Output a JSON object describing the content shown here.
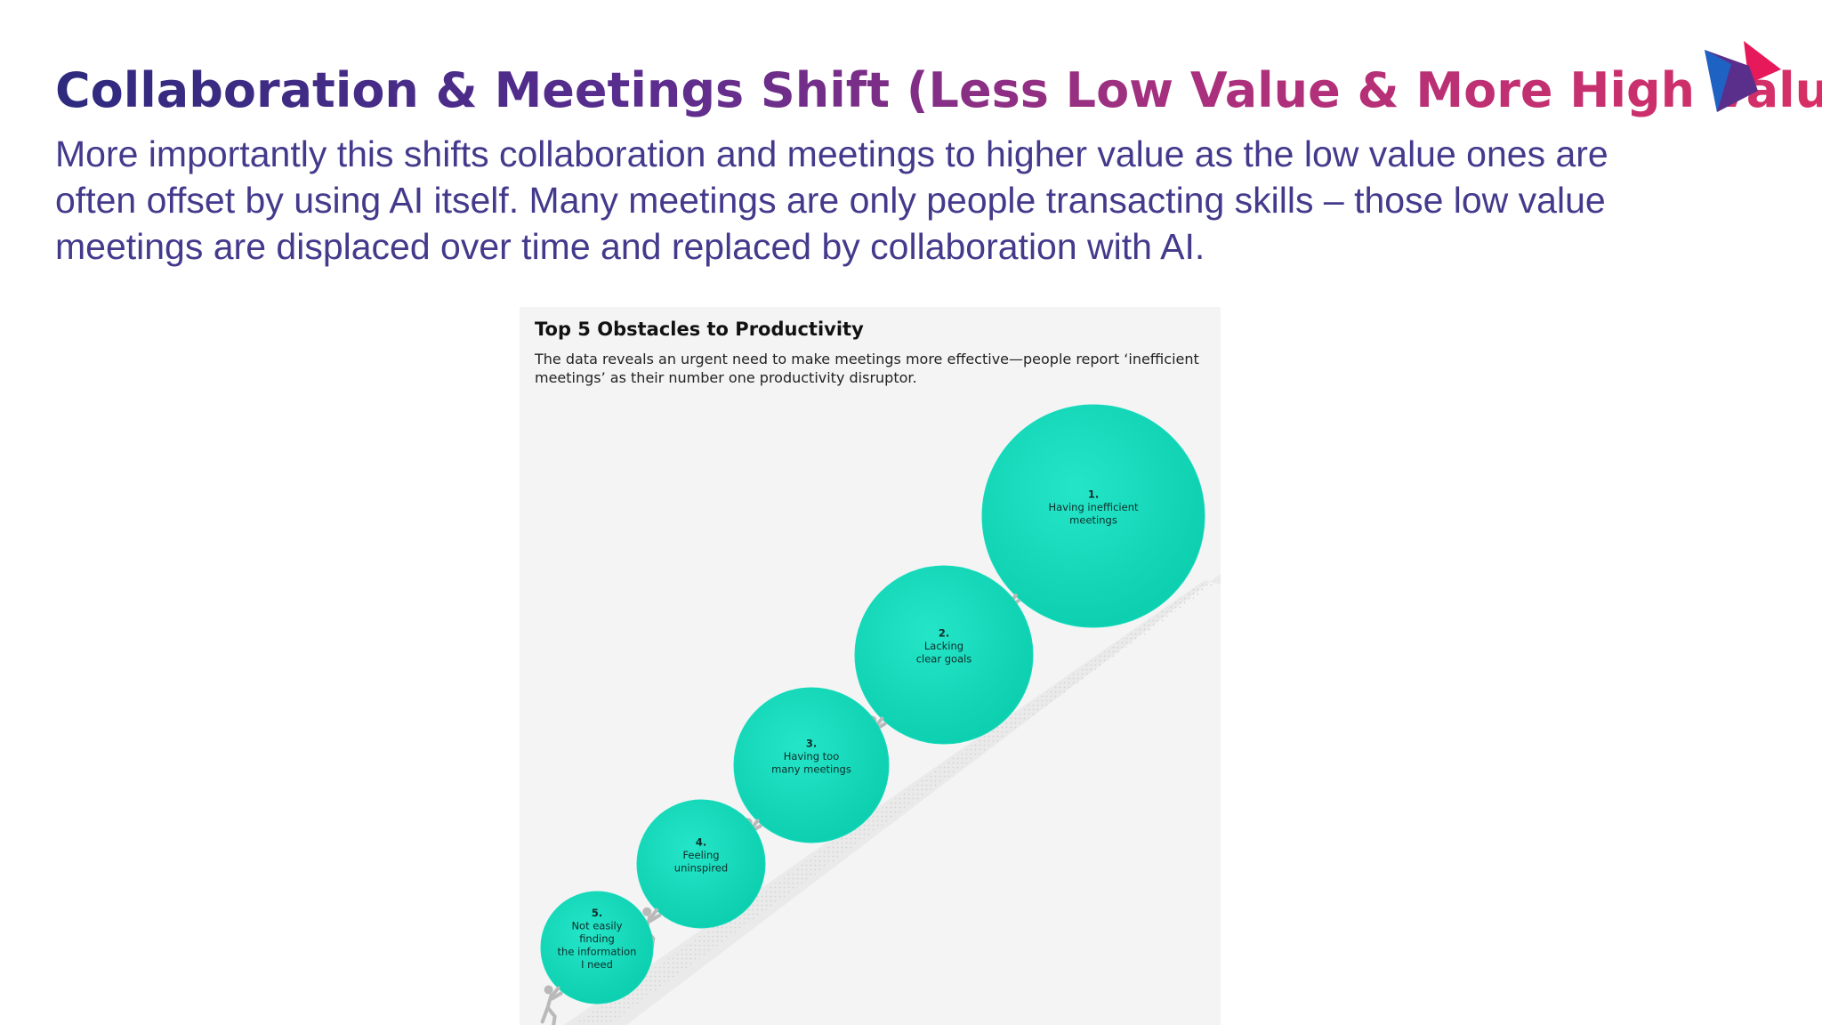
{
  "header": {
    "title": "Collaboration & Meetings Shift (Less Low Value & More High Value)",
    "subtitle": "More importantly this shifts collaboration and meetings to higher value as the low value ones are often offset by using AI itself. Many meetings are only people transacting skills – those low value meetings are displaced over time and replaced by collaboration with AI."
  },
  "logo": {
    "icon": "play-triangle-logo",
    "colors": [
      "#e6195a",
      "#5a2f8c",
      "#1e63c4"
    ]
  },
  "figure": {
    "title": "Top 5 Obstacles to Productivity",
    "description": "The data reveals an urgent need to make meetings more effective—people report ‘inefficient meetings’ as their number one productivity disruptor.",
    "ball_color": "#14dbbc",
    "obstacles": [
      {
        "rank": "1.",
        "lines": [
          "Having inefficient",
          "meetings"
        ]
      },
      {
        "rank": "2.",
        "lines": [
          "Lacking",
          "clear goals"
        ]
      },
      {
        "rank": "3.",
        "lines": [
          "Having too",
          "many meetings"
        ]
      },
      {
        "rank": "4.",
        "lines": [
          "Feeling",
          "uninspired"
        ]
      },
      {
        "rank": "5.",
        "lines": [
          "Not easily",
          "finding",
          "the information",
          "I need"
        ]
      }
    ]
  }
}
